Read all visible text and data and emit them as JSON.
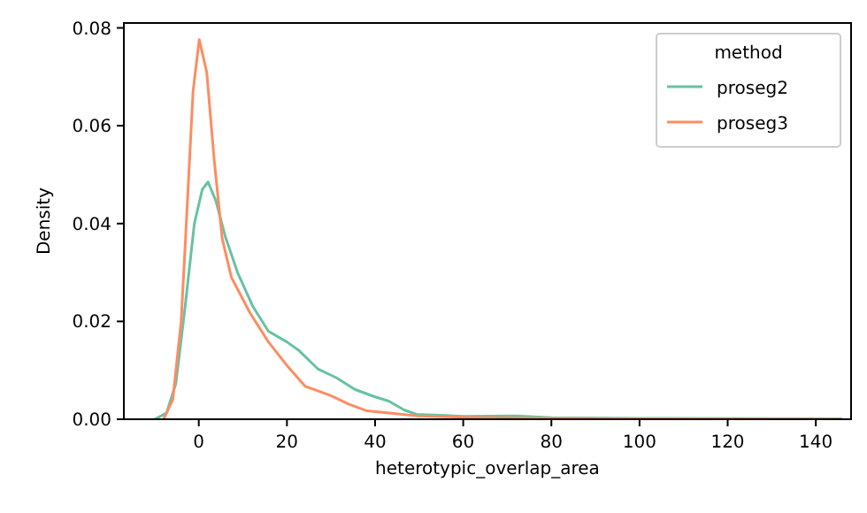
{
  "chart_data": {
    "type": "line",
    "xlabel": "heterotypic_overlap_area",
    "ylabel": "Density",
    "legend_title": "method",
    "legend": "top right",
    "grid": false,
    "marker": "none",
    "line_style": "solid",
    "xlim": [
      -17,
      148
    ],
    "xticks": [
      0,
      20,
      40,
      60,
      80,
      100,
      120,
      140
    ],
    "ylim": [
      0,
      0.081
    ],
    "yticks": [
      {
        "value": 0,
        "label": "0.00"
      },
      {
        "value": 0.02,
        "label": "0.02"
      },
      {
        "value": 0.04,
        "label": "0.04"
      },
      {
        "value": 0.06,
        "label": "0.06"
      },
      {
        "value": 0.08,
        "label": "0.08"
      }
    ],
    "series": [
      {
        "name": "proseg2",
        "color": "#66c2a5",
        "x": [
          -10,
          -7.3,
          -5.2,
          -3.1,
          -1,
          0.8,
          2.1,
          3.9,
          6,
          8.8,
          12.3,
          15.8,
          20,
          22.8,
          27,
          31.2,
          35.4,
          39.6,
          43.1,
          46.6,
          49.4,
          60,
          72,
          80,
          100,
          146
        ],
        "values": [
          0,
          0.0013,
          0.0073,
          0.023,
          0.04,
          0.047,
          0.0485,
          0.0446,
          0.0374,
          0.03,
          0.023,
          0.018,
          0.0158,
          0.014,
          0.0103,
          0.0085,
          0.0061,
          0.0047,
          0.0037,
          0.0019,
          0.001,
          0.0006,
          0.0007,
          0.0003,
          0.0002,
          0.0001
        ]
      },
      {
        "name": "proseg3",
        "color": "#fc8d62",
        "x": [
          -8,
          -5.9,
          -4,
          -3,
          -1.3,
          0.1,
          1.8,
          3.5,
          5.3,
          7.4,
          11.6,
          15.8,
          20,
          24.2,
          29.8,
          34,
          38.2,
          43.8,
          49.4,
          60,
          80,
          100,
          146
        ],
        "values": [
          0,
          0.004,
          0.02,
          0.037,
          0.067,
          0.0776,
          0.071,
          0.053,
          0.037,
          0.029,
          0.0218,
          0.0158,
          0.011,
          0.0067,
          0.0049,
          0.0031,
          0.0017,
          0.0012,
          0.0007,
          0.0004,
          0.0002,
          0.0001,
          0
        ]
      }
    ]
  }
}
